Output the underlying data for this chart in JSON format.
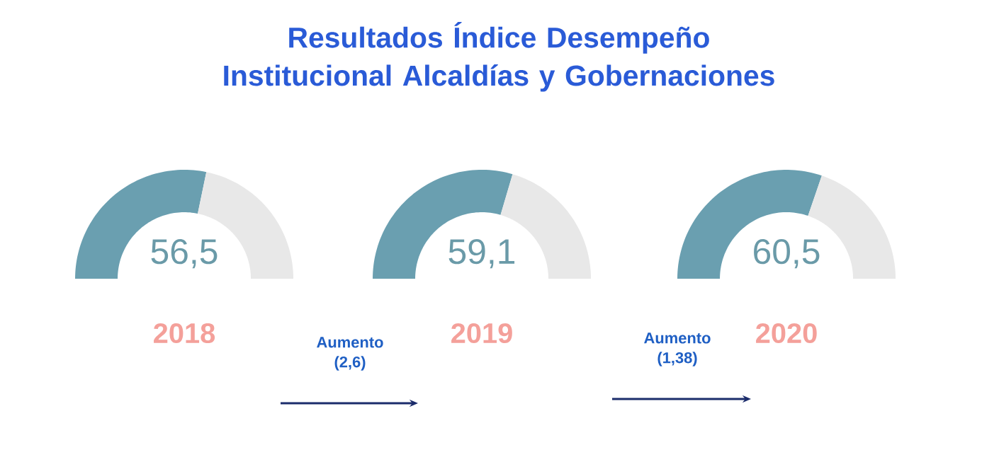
{
  "chart_data": [
    {
      "type": "donut",
      "title": "Resultados Índice Desempeño Institucional Alcaldías y Gobernaciones",
      "categories": [
        null,
        null
      ],
      "values": [
        56.5,
        43.5
      ],
      "colors": [
        "#6a9fb0",
        "#e8e8e8"
      ],
      "value_labels": [
        "56,5",
        null
      ],
      "xlabel": "2018",
      "annotations": [
        "Aumento (2,6)"
      ]
    },
    {
      "type": "donut",
      "categories": [
        null,
        null
      ],
      "values": [
        59.1,
        40.9
      ],
      "colors": [
        "#6a9fb0",
        "#e8e8e8"
      ],
      "value_labels": [
        "59,1",
        null
      ],
      "xlabel": "2019",
      "annotations": [
        "Aumento (1,38)"
      ]
    },
    {
      "type": "donut",
      "categories": [
        null,
        null
      ],
      "values": [
        60.5,
        39.5
      ],
      "colors": [
        "#6a9fb0",
        "#e8e8e8"
      ],
      "value_labels": [
        "60,5",
        null
      ],
      "xlabel": "2020"
    }
  ]
}
